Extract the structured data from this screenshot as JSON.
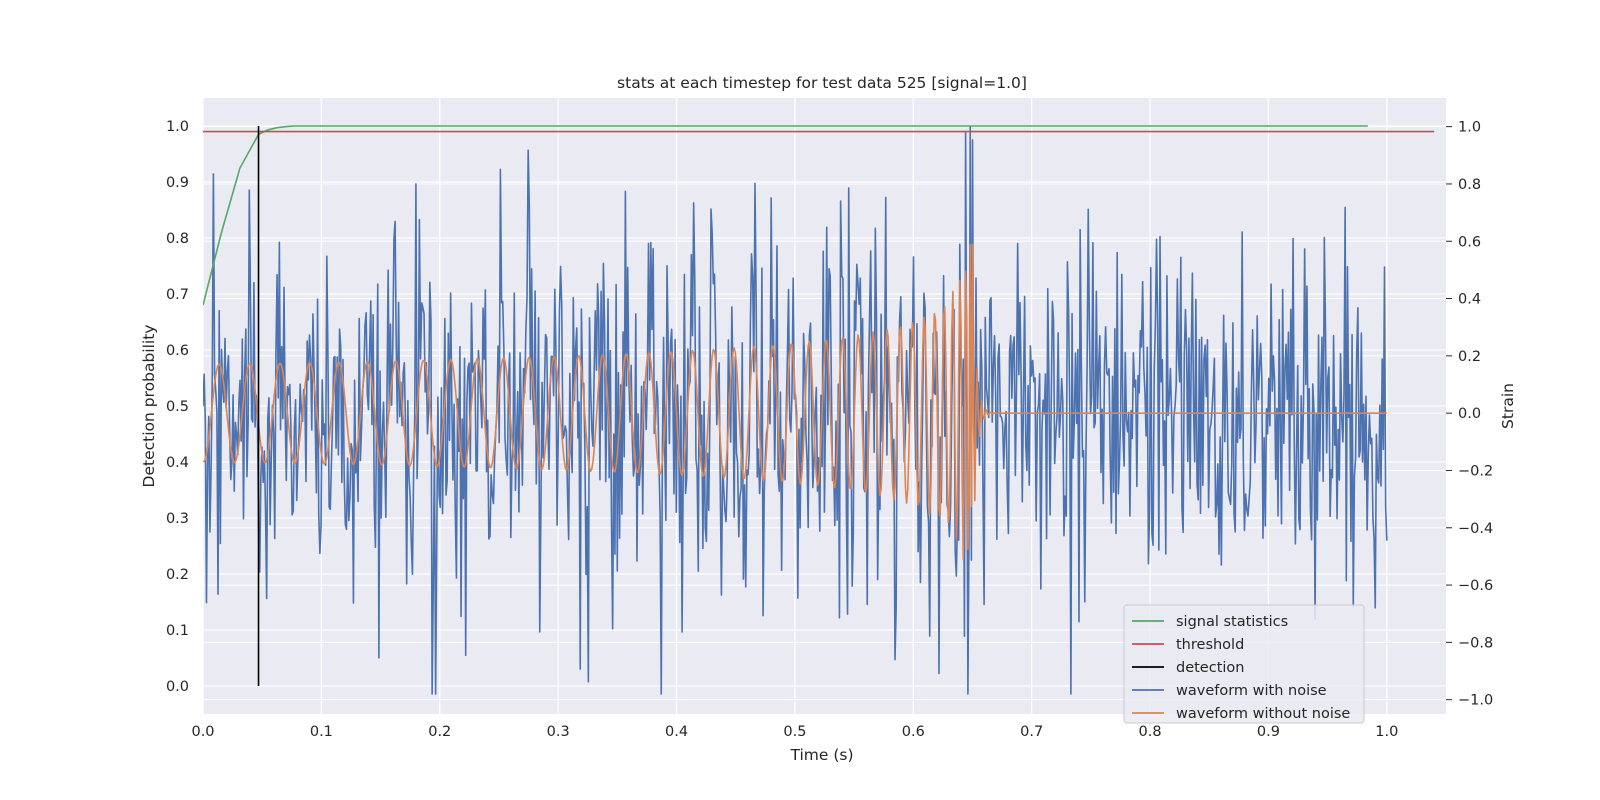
{
  "chart_data": {
    "type": "line",
    "title": "stats at each timestep for test data 525 [signal=1.0]",
    "xlabel": "Time (s)",
    "ylabel_left": "Detection probability",
    "ylabel_right": "Strain",
    "xlim": [
      0.0,
      1.05
    ],
    "ylim_left": [
      -0.05,
      1.05
    ],
    "ylim_right": [
      -1.05,
      1.1
    ],
    "x_ticks": [
      "0.0",
      "0.1",
      "0.2",
      "0.3",
      "0.4",
      "0.5",
      "0.6",
      "0.7",
      "0.8",
      "0.9",
      "1.0"
    ],
    "y_left_ticks": [
      "0.0",
      "0.1",
      "0.2",
      "0.3",
      "0.4",
      "0.5",
      "0.6",
      "0.7",
      "0.8",
      "0.9",
      "1.0"
    ],
    "y_right_ticks": [
      "−1.0",
      "−0.8",
      "−0.6",
      "−0.4",
      "−0.2",
      "0.0",
      "0.2",
      "0.4",
      "0.6",
      "0.8",
      "1.0"
    ],
    "grid": true,
    "legend_position": "lower-right",
    "series": [
      {
        "name": "signal statistics",
        "axis": "left",
        "color": "#55a868",
        "x": [
          0.0,
          0.0156,
          0.0312,
          0.0469,
          0.0547,
          0.0625,
          0.0703,
          0.0781,
          0.1,
          0.2,
          0.4,
          0.6,
          0.8,
          0.984
        ],
        "y": [
          0.68,
          0.81,
          0.925,
          0.985,
          0.993,
          0.997,
          0.999,
          1.0,
          1.0,
          1.0,
          1.0,
          1.0,
          1.0,
          1.0
        ]
      },
      {
        "name": "threshold",
        "axis": "left",
        "color": "#c44e52",
        "x": [
          0.0,
          1.04
        ],
        "y": [
          0.99,
          0.99
        ]
      },
      {
        "name": "detection",
        "axis": "left",
        "color": "#000000",
        "x": [
          0.0469,
          0.0469
        ],
        "y": [
          0.0,
          1.0
        ]
      },
      {
        "name": "waveform with noise",
        "axis": "right",
        "color": "#4c72b0",
        "description_points": {
          "x_range": [
            0.0,
            1.0
          ],
          "n_samples": 1024,
          "peaks": [
            [
              0.18,
              0.8
            ],
            [
              0.36,
              0.7
            ],
            [
              0.648,
              1.0
            ],
            [
              0.648,
              -0.98
            ]
          ],
          "noise_std": 0.28
        }
      },
      {
        "name": "waveform without noise",
        "axis": "right",
        "color": "#dd8452",
        "chirp": {
          "x_range": [
            0.0,
            1.0
          ],
          "merger_time": 0.65,
          "amp_start": 0.17,
          "amp_peak": 0.6,
          "freq_start_hz": 38,
          "freq_peak_hz": 260,
          "ringdown_end": 0.665
        }
      }
    ]
  }
}
